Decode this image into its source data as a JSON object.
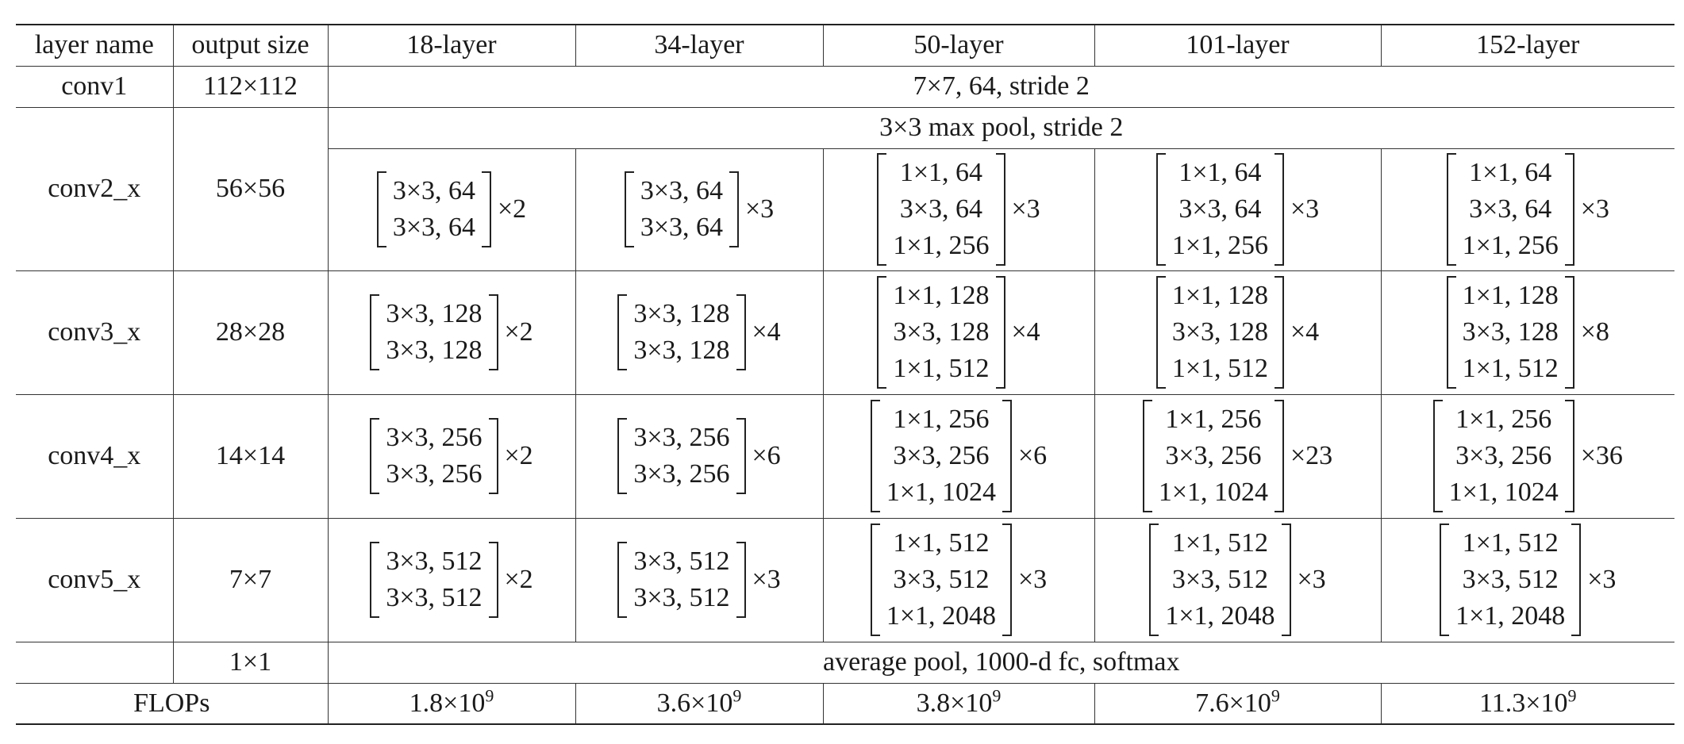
{
  "columns": [
    "layer name",
    "output size",
    "18-layer",
    "34-layer",
    "50-layer",
    "101-layer",
    "152-layer"
  ],
  "conv1": {
    "name": "conv1",
    "output": "112×112",
    "spec": "7×7, 64, stride 2"
  },
  "conv2_x": {
    "name": "conv2_x",
    "output": "56×56",
    "pool": "3×3 max pool, stride 2",
    "blocks": [
      {
        "lines": [
          "3×3, 64",
          "3×3, 64"
        ],
        "times": "×2"
      },
      {
        "lines": [
          "3×3, 64",
          "3×3, 64"
        ],
        "times": "×3"
      },
      {
        "lines": [
          "1×1, 64",
          "3×3, 64",
          "1×1, 256"
        ],
        "times": "×3"
      },
      {
        "lines": [
          "1×1, 64",
          "3×3, 64",
          "1×1, 256"
        ],
        "times": "×3"
      },
      {
        "lines": [
          "1×1, 64",
          "3×3, 64",
          "1×1, 256"
        ],
        "times": "×3"
      }
    ]
  },
  "conv3_x": {
    "name": "conv3_x",
    "output": "28×28",
    "blocks": [
      {
        "lines": [
          "3×3, 128",
          "3×3, 128"
        ],
        "times": "×2"
      },
      {
        "lines": [
          "3×3, 128",
          "3×3, 128"
        ],
        "times": "×4"
      },
      {
        "lines": [
          "1×1, 128",
          "3×3, 128",
          "1×1, 512"
        ],
        "times": "×4"
      },
      {
        "lines": [
          "1×1, 128",
          "3×3, 128",
          "1×1, 512"
        ],
        "times": "×4"
      },
      {
        "lines": [
          "1×1, 128",
          "3×3, 128",
          "1×1, 512"
        ],
        "times": "×8"
      }
    ]
  },
  "conv4_x": {
    "name": "conv4_x",
    "output": "14×14",
    "blocks": [
      {
        "lines": [
          "3×3, 256",
          "3×3, 256"
        ],
        "times": "×2"
      },
      {
        "lines": [
          "3×3, 256",
          "3×3, 256"
        ],
        "times": "×6"
      },
      {
        "lines": [
          "1×1, 256",
          "3×3, 256",
          "1×1, 1024"
        ],
        "times": "×6"
      },
      {
        "lines": [
          "1×1, 256",
          "3×3, 256",
          "1×1, 1024"
        ],
        "times": "×23"
      },
      {
        "lines": [
          "1×1, 256",
          "3×3, 256",
          "1×1, 1024"
        ],
        "times": "×36"
      }
    ]
  },
  "conv5_x": {
    "name": "conv5_x",
    "output": "7×7",
    "blocks": [
      {
        "lines": [
          "3×3, 512",
          "3×3, 512"
        ],
        "times": "×2"
      },
      {
        "lines": [
          "3×3, 512",
          "3×3, 512"
        ],
        "times": "×3"
      },
      {
        "lines": [
          "1×1, 512",
          "3×3, 512",
          "1×1, 2048"
        ],
        "times": "×3"
      },
      {
        "lines": [
          "1×1, 512",
          "3×3, 512",
          "1×1, 2048"
        ],
        "times": "×3"
      },
      {
        "lines": [
          "1×1, 512",
          "3×3, 512",
          "1×1, 2048"
        ],
        "times": "×3"
      }
    ]
  },
  "fc": {
    "output": "1×1",
    "spec": "average pool, 1000-d fc, softmax"
  },
  "flops": {
    "label": "FLOPs",
    "values": [
      {
        "mantissa": "1.8×10",
        "exp": "9"
      },
      {
        "mantissa": "3.6×10",
        "exp": "9"
      },
      {
        "mantissa": "3.8×10",
        "exp": "9"
      },
      {
        "mantissa": "7.6×10",
        "exp": "9"
      },
      {
        "mantissa": "11.3×10",
        "exp": "9"
      }
    ]
  }
}
